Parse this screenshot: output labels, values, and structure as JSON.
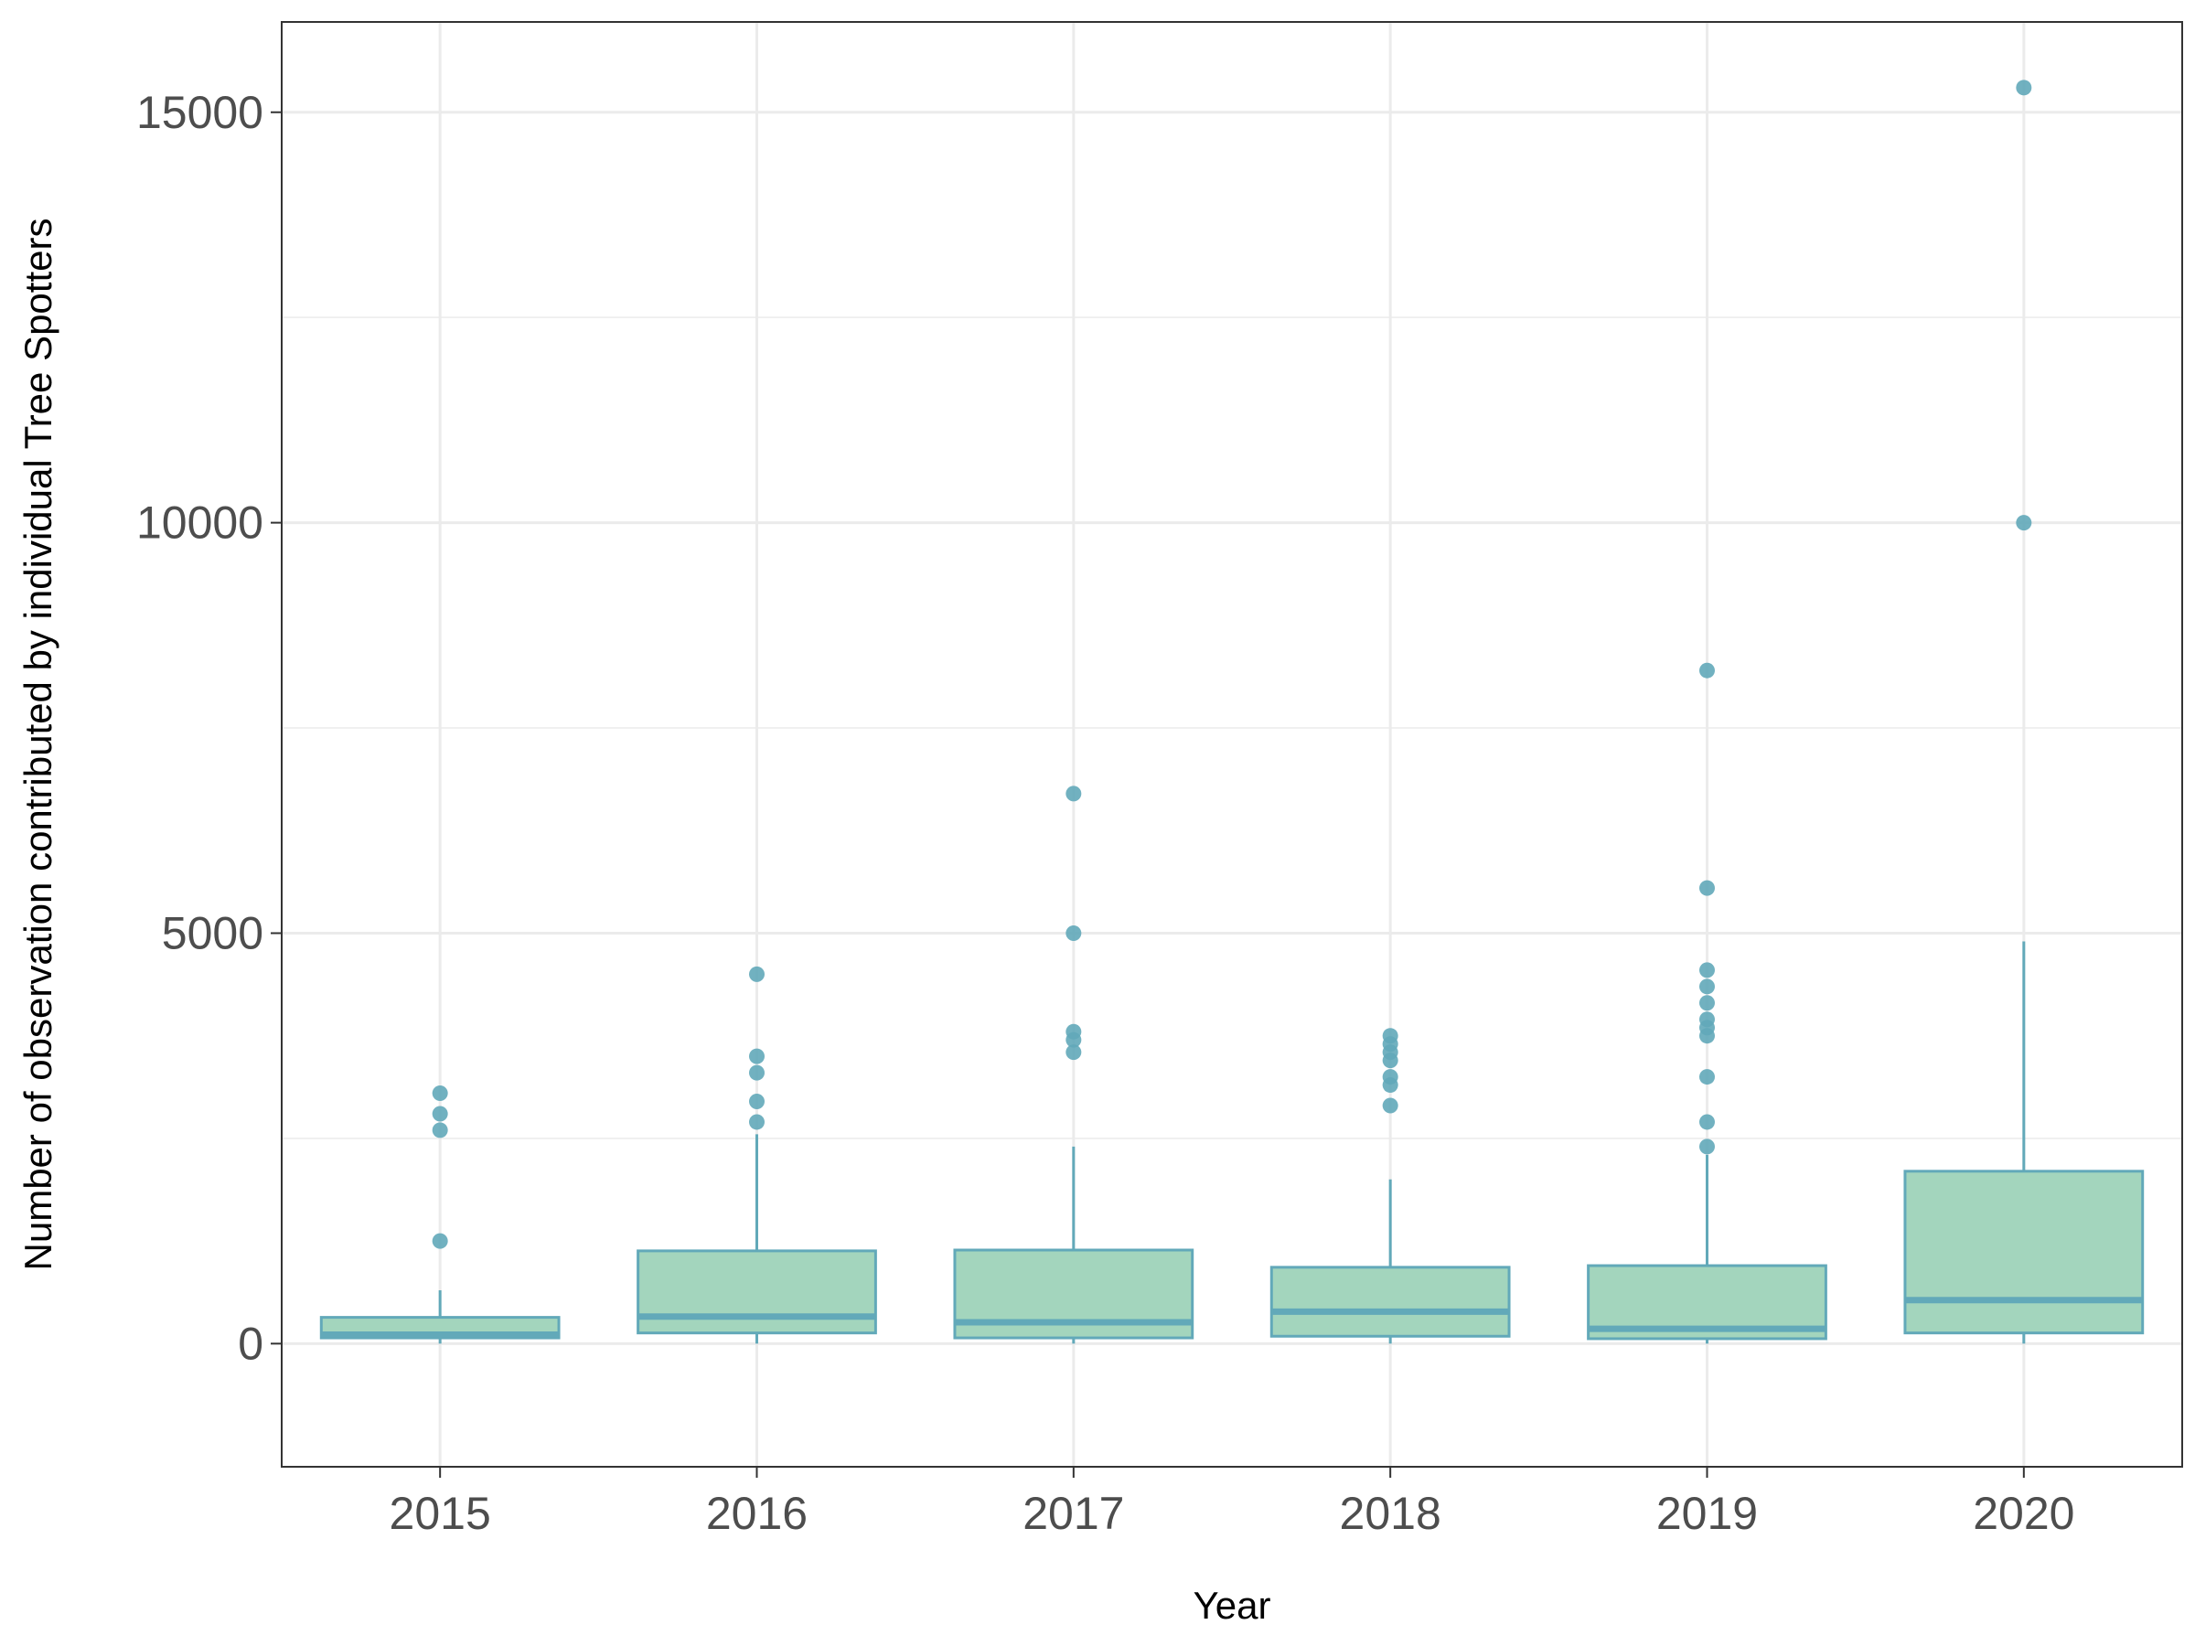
{
  "chart_data": {
    "type": "boxplot",
    "title": "",
    "xlabel": "Year",
    "ylabel": "Number of observation contributed by individual Tree Spotters",
    "ylim": [
      -1500,
      16100
    ],
    "y_ticks": [
      0,
      5000,
      10000,
      15000
    ],
    "y_tick_labels": [
      "0",
      "5000",
      "10000",
      "15000"
    ],
    "grid": true,
    "legend": "none",
    "colors": {
      "fill": "#a3d5bd",
      "stroke": "#62a9b9",
      "outlier": "#62a9b9",
      "grid": "#ebebeb",
      "panel_border": "#333333"
    },
    "categories": [
      "2015",
      "2016",
      "2017",
      "2018",
      "2019",
      "2020"
    ],
    "boxes": [
      {
        "x": "2015",
        "min": 0,
        "q1": 70,
        "median": 110,
        "q3": 320,
        "max": 650,
        "outliers": [
          1250,
          2600,
          2800,
          3050
        ]
      },
      {
        "x": "2016",
        "min": 0,
        "q1": 130,
        "median": 330,
        "q3": 1130,
        "max": 2550,
        "outliers": [
          2700,
          2950,
          3300,
          3500,
          4500
        ]
      },
      {
        "x": "2017",
        "min": 0,
        "q1": 70,
        "median": 260,
        "q3": 1140,
        "max": 2400,
        "outliers": [
          3550,
          3700,
          3800,
          5000,
          6700
        ]
      },
      {
        "x": "2018",
        "min": 0,
        "q1": 90,
        "median": 390,
        "q3": 930,
        "max": 2000,
        "outliers": [
          2900,
          3150,
          3250,
          3450,
          3550,
          3650,
          3750
        ]
      },
      {
        "x": "2019",
        "min": 0,
        "q1": 60,
        "median": 180,
        "q3": 950,
        "max": 2300,
        "outliers": [
          2400,
          2700,
          3250,
          3750,
          3850,
          3950,
          4150,
          4350,
          4550,
          5550,
          8200
        ]
      },
      {
        "x": "2020",
        "min": 0,
        "q1": 130,
        "median": 530,
        "q3": 2100,
        "max": 4900,
        "outliers": [
          10000,
          15300
        ]
      }
    ]
  }
}
